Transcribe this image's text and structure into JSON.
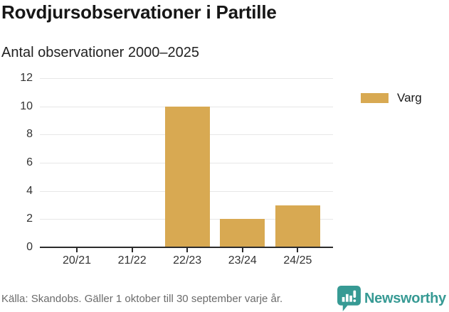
{
  "header": {
    "title": "Rovdjursobservationer i Partille",
    "subtitle": "Antal observationer 2000–2025"
  },
  "chart_data": {
    "type": "bar",
    "title": "Rovdjursobservationer i Partille",
    "subtitle": "Antal observationer 2000–2025",
    "categories": [
      "20/21",
      "21/22",
      "22/23",
      "23/24",
      "24/25"
    ],
    "series": [
      {
        "name": "Varg",
        "color": "#d8a952",
        "values": [
          0,
          0,
          10,
          2,
          3
        ]
      }
    ],
    "xlabel": "",
    "ylabel": "",
    "ylim": [
      0,
      12
    ],
    "ytick_step": 2,
    "ytick_labels": [
      "0",
      "2",
      "4",
      "6",
      "8",
      "10",
      "12"
    ],
    "grid": true,
    "legend_position": "right"
  },
  "legend": {
    "swatch_color": "#d8a952"
  },
  "footer": {
    "source": "Källa: Skandobs. Gäller 1 oktober till 30 september varje år.",
    "brand_name": "Newsworthy",
    "brand_color": "#379a94"
  },
  "colors": {
    "bar": "#d8a952",
    "gridline": "#e7e7e7",
    "axis": "#2b2b2b",
    "tick_text": "#333333",
    "brand_teal": "#379a94"
  }
}
